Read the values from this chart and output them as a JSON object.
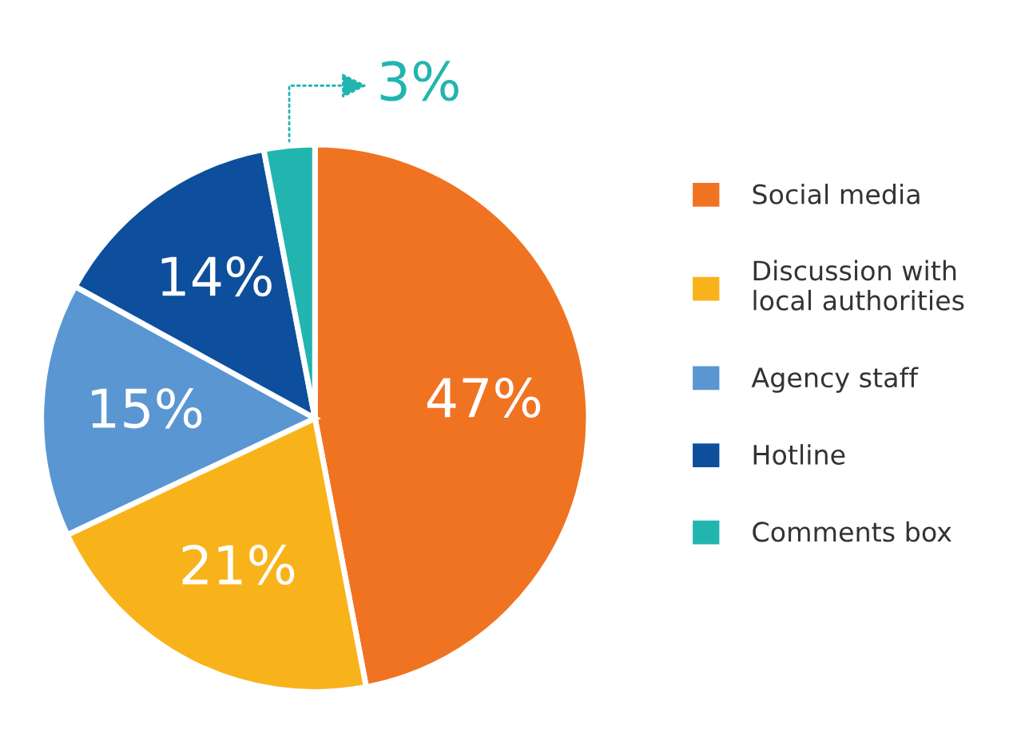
{
  "chart_data": {
    "type": "pie",
    "categories": [
      "Social media",
      "Discussion with\nlocal authorities",
      "Agency staff",
      "Hotline",
      "Comments box"
    ],
    "values": [
      47,
      21,
      15,
      14,
      3
    ],
    "colors": [
      "#f07322",
      "#f8b31b",
      "#5a96d2",
      "#0d4f9c",
      "#22b5b0"
    ],
    "value_labels": [
      "47%",
      "21%",
      "15%",
      "14%",
      "3%"
    ],
    "legend": "right"
  }
}
